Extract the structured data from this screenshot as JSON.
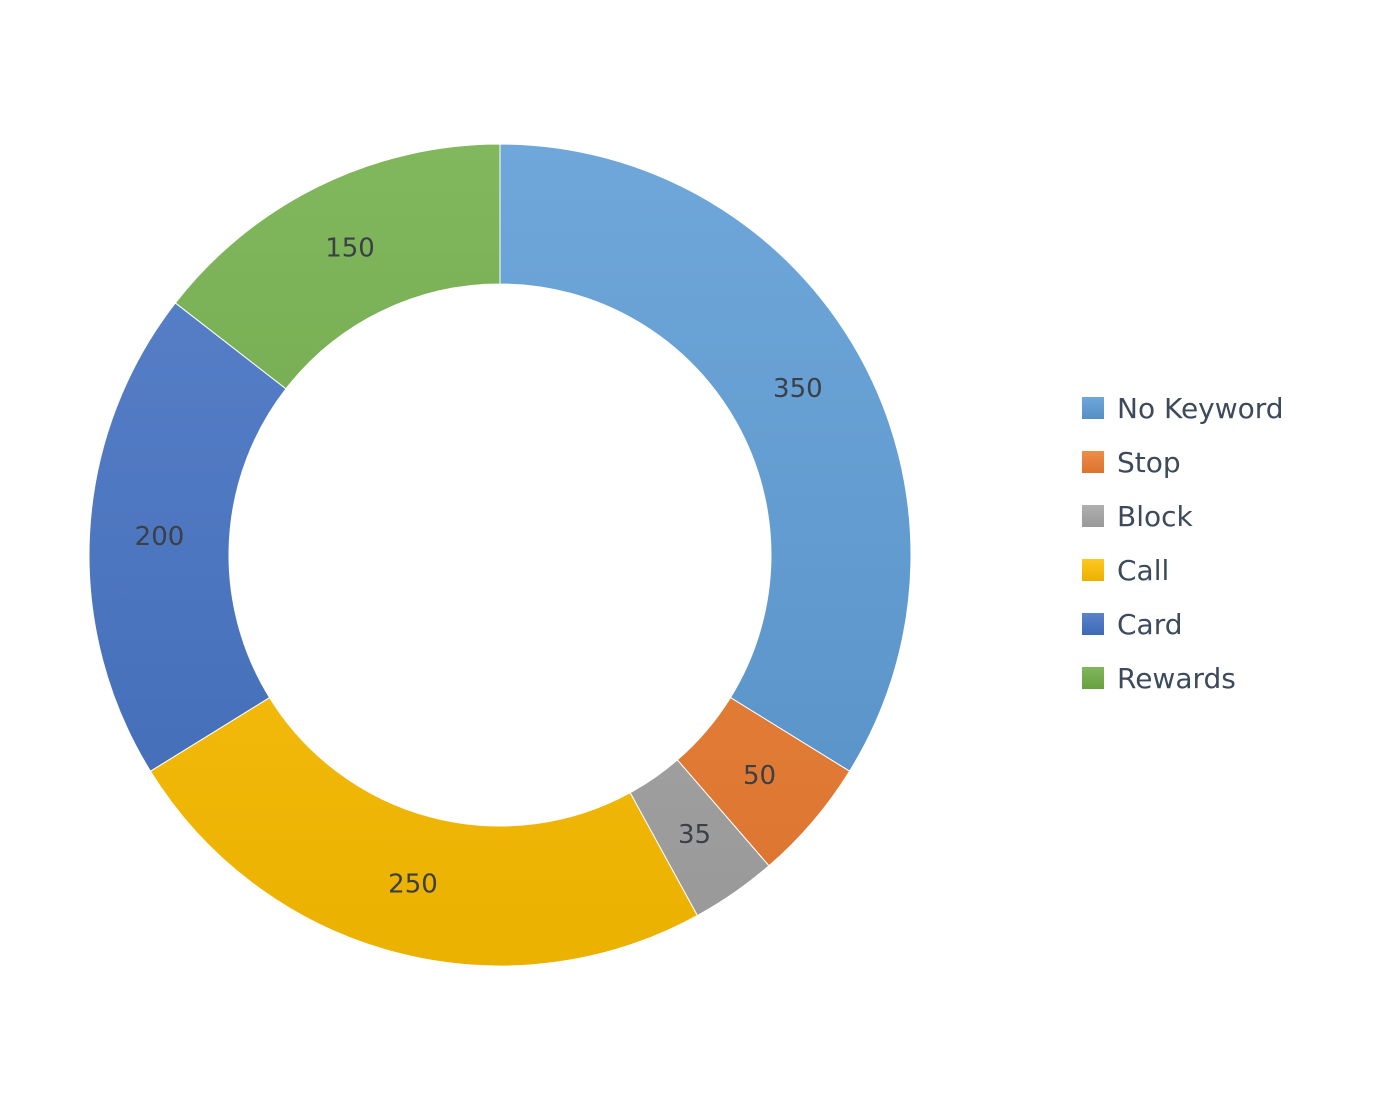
{
  "chart_data": {
    "type": "pie",
    "variant": "donut",
    "title": "",
    "categories": [
      "No Keyword",
      "Stop",
      "Block",
      "Call",
      "Card",
      "Rewards"
    ],
    "values": [
      350,
      50,
      35,
      250,
      200,
      150
    ],
    "data_labels": [
      "350",
      "50",
      "35",
      "250",
      "200",
      "150"
    ],
    "colors": [
      "#5B9BD5",
      "#ED7D31",
      "#A5A5A5",
      "#FFC000",
      "#4472C4",
      "#70AD47"
    ],
    "start_angle": "12 o'clock",
    "direction": "clockwise",
    "legend_position": "right"
  }
}
